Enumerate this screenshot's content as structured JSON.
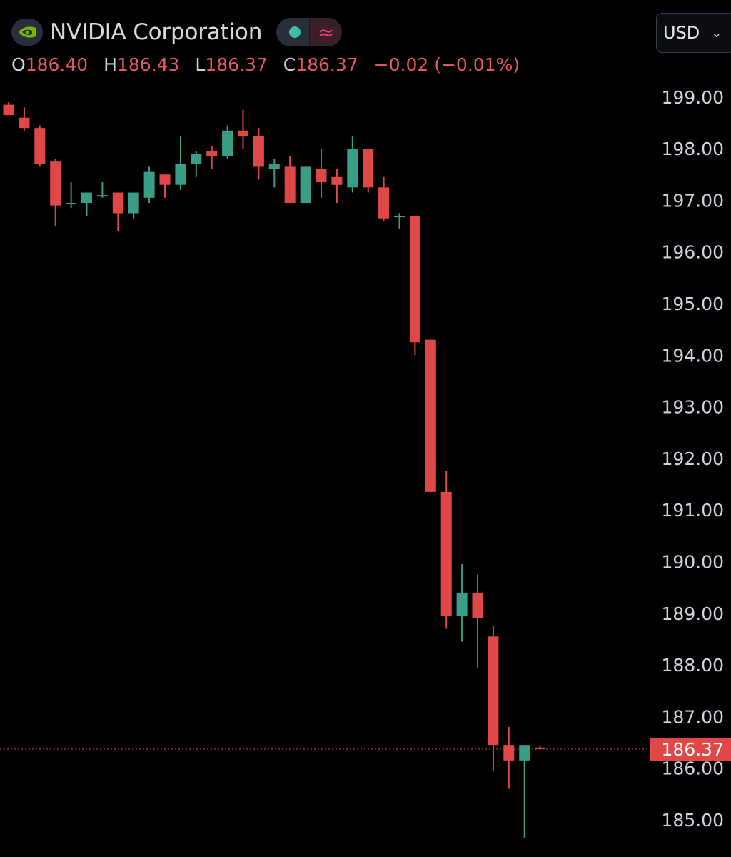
{
  "symbol": {
    "name": "NVIDIA Corporation",
    "logo_icon": "nvidia-logo-icon",
    "status_icon": "market-status-dot-icon",
    "status_color": "#42bd9d",
    "extended_icon": "approx-wave-icon"
  },
  "ohlc": {
    "o_key": "O",
    "o_val": "186.40",
    "h_key": "H",
    "h_val": "186.43",
    "l_key": "L",
    "l_val": "186.37",
    "c_key": "C",
    "c_val": "186.37",
    "change": "−0.02 (−0.01%)"
  },
  "currency": {
    "label": "USD",
    "chevron_icon": "chevron-down-icon"
  },
  "colors": {
    "up": "#3a9d86",
    "down": "#e04848",
    "background": "#000000",
    "price_line": "#e04848"
  },
  "chart_data": {
    "type": "candlestick",
    "series": [
      {
        "name": "NVIDIA Corporation",
        "candles": [
          {
            "o": 198.85,
            "h": 198.9,
            "l": 198.65,
            "c": 198.65
          },
          {
            "o": 198.6,
            "h": 198.8,
            "l": 198.35,
            "c": 198.4
          },
          {
            "o": 198.4,
            "h": 198.45,
            "l": 197.65,
            "c": 197.7
          },
          {
            "o": 197.75,
            "h": 197.8,
            "l": 196.5,
            "c": 196.9
          },
          {
            "o": 196.95,
            "h": 197.35,
            "l": 196.85,
            "c": 196.95
          },
          {
            "o": 196.95,
            "h": 197.15,
            "l": 196.7,
            "c": 197.15
          },
          {
            "o": 197.1,
            "h": 197.35,
            "l": 197.05,
            "c": 197.1
          },
          {
            "o": 197.15,
            "h": 197.15,
            "l": 196.4,
            "c": 196.75
          },
          {
            "o": 196.75,
            "h": 197.15,
            "l": 196.65,
            "c": 197.15
          },
          {
            "o": 197.05,
            "h": 197.65,
            "l": 196.95,
            "c": 197.55
          },
          {
            "o": 197.5,
            "h": 197.5,
            "l": 197.05,
            "c": 197.3
          },
          {
            "o": 197.3,
            "h": 198.25,
            "l": 197.2,
            "c": 197.7
          },
          {
            "o": 197.7,
            "h": 197.95,
            "l": 197.45,
            "c": 197.9
          },
          {
            "o": 197.95,
            "h": 198.05,
            "l": 197.6,
            "c": 197.85
          },
          {
            "o": 197.85,
            "h": 198.45,
            "l": 197.8,
            "c": 198.35
          },
          {
            "o": 198.35,
            "h": 198.75,
            "l": 198.0,
            "c": 198.25
          },
          {
            "o": 198.25,
            "h": 198.4,
            "l": 197.4,
            "c": 197.65
          },
          {
            "o": 197.6,
            "h": 197.8,
            "l": 197.25,
            "c": 197.7
          },
          {
            "o": 197.65,
            "h": 197.85,
            "l": 196.95,
            "c": 196.95
          },
          {
            "o": 196.95,
            "h": 197.65,
            "l": 196.95,
            "c": 197.65
          },
          {
            "o": 197.6,
            "h": 198.0,
            "l": 197.05,
            "c": 197.35
          },
          {
            "o": 197.45,
            "h": 197.6,
            "l": 196.95,
            "c": 197.3
          },
          {
            "o": 197.25,
            "h": 198.25,
            "l": 197.15,
            "c": 198.0
          },
          {
            "o": 198.0,
            "h": 198.0,
            "l": 197.15,
            "c": 197.25
          },
          {
            "o": 197.25,
            "h": 197.45,
            "l": 196.6,
            "c": 196.65
          },
          {
            "o": 196.7,
            "h": 196.75,
            "l": 196.45,
            "c": 196.7
          },
          {
            "o": 196.7,
            "h": 196.7,
            "l": 194.0,
            "c": 194.25
          },
          {
            "o": 194.3,
            "h": 194.3,
            "l": 191.35,
            "c": 191.35
          },
          {
            "o": 191.35,
            "h": 191.75,
            "l": 188.7,
            "c": 188.95
          },
          {
            "o": 188.95,
            "h": 189.95,
            "l": 188.45,
            "c": 189.4
          },
          {
            "o": 189.4,
            "h": 189.75,
            "l": 187.95,
            "c": 188.9
          },
          {
            "o": 188.55,
            "h": 188.75,
            "l": 185.95,
            "c": 186.45
          },
          {
            "o": 186.45,
            "h": 186.8,
            "l": 185.6,
            "c": 186.15
          },
          {
            "o": 186.15,
            "h": 186.4,
            "l": 184.65,
            "c": 186.45
          },
          {
            "o": 186.4,
            "h": 186.43,
            "l": 186.37,
            "c": 186.37
          }
        ]
      }
    ],
    "title": "NVIDIA Corporation",
    "xlabel": "",
    "ylabel": "",
    "ylim": [
      184.6,
      199.3
    ],
    "yticks": [
      "199.00",
      "198.00",
      "197.00",
      "196.00",
      "195.00",
      "194.00",
      "193.00",
      "192.00",
      "191.00",
      "190.00",
      "189.00",
      "188.00",
      "187.00",
      "186.00",
      "185.00"
    ],
    "last_price": 186.37,
    "last_price_label": "186.37",
    "grid": false,
    "legend": "top-left"
  }
}
